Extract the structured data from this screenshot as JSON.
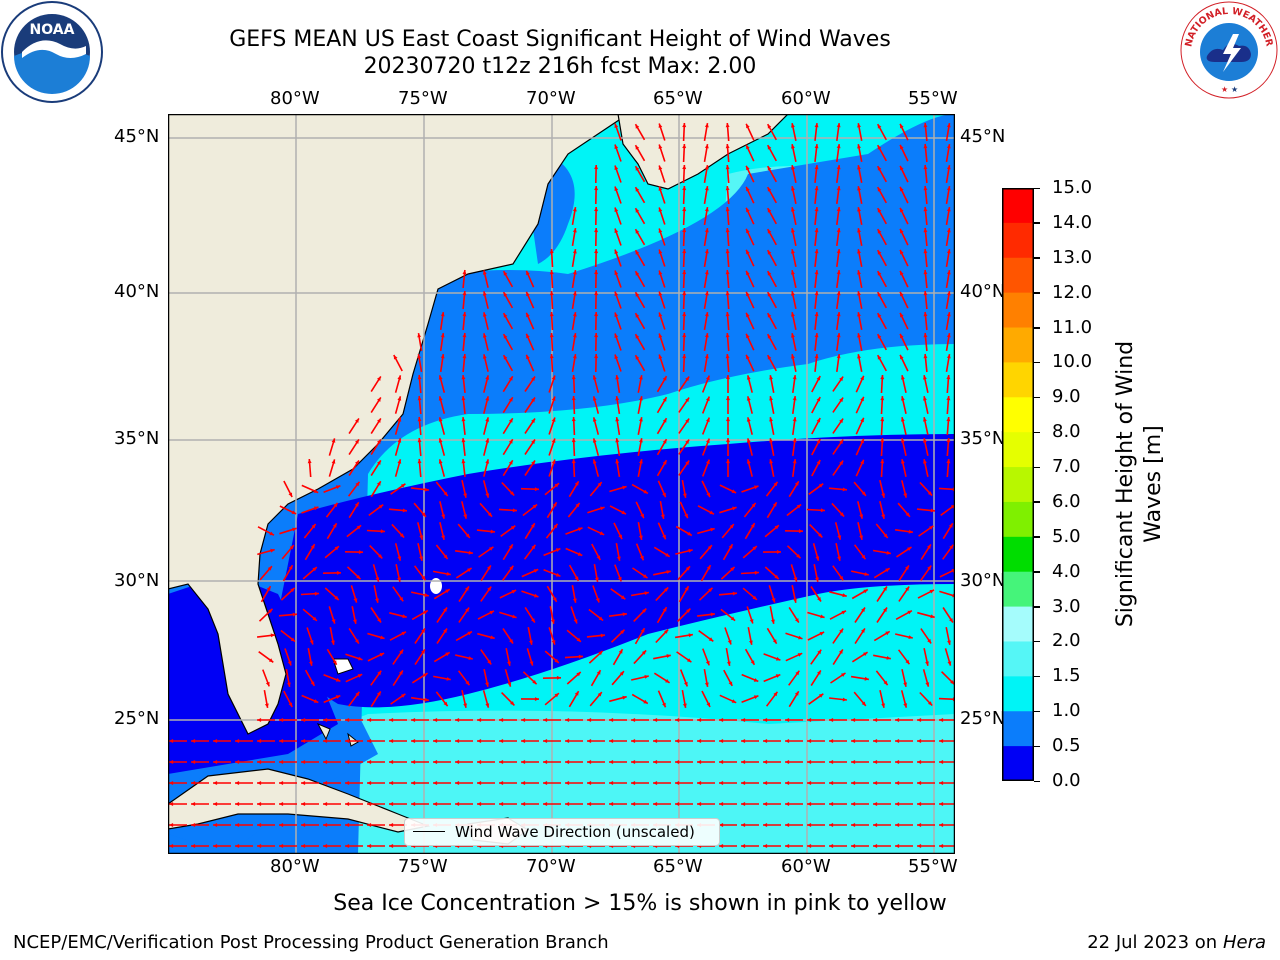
{
  "header": {
    "title": "GEFS MEAN US East Coast Significant Height of Wind Waves",
    "subtitle": "20230720 t12z 216h fcst   Max: 2.00"
  },
  "map": {
    "lon_ticks": [
      "80°W",
      "75°W",
      "70°W",
      "65°W",
      "60°W",
      "55°W"
    ],
    "lat_ticks": [
      "45°N",
      "40°N",
      "35°N",
      "30°N",
      "25°N"
    ],
    "legend_label": "Wind Wave Direction (unscaled)",
    "colors": {
      "land": "#efecdc",
      "bin_0_0_5": "#0000f5",
      "bin_0_5_1_0": "#0b7dfb",
      "bin_1_0_1_5": "#00f4f6",
      "bin_1_5_2_0": "#55f6f6",
      "arrow": "#ff0000",
      "grid": "#b0b0b0"
    }
  },
  "colorbar": {
    "label": "Significant Height of Wind Waves [m]",
    "label_line1": "Significant Height of Wind",
    "label_line2": "Waves [m]",
    "ticks": [
      "15.0",
      "14.0",
      "13.0",
      "12.0",
      "11.0",
      "10.0",
      "9.0",
      "8.0",
      "7.0",
      "6.0",
      "5.0",
      "4.0",
      "3.0",
      "2.0",
      "1.5",
      "1.0",
      "0.5",
      "0.0"
    ],
    "colors": [
      "#ff0000",
      "#ff2a00",
      "#ff5500",
      "#ff8000",
      "#ffaa00",
      "#ffd500",
      "#ffff00",
      "#e5ff00",
      "#b8f700",
      "#7ff000",
      "#00dd00",
      "#45f47a",
      "#a5fcfc",
      "#55f6f6",
      "#00f4f6",
      "#0b7dfb",
      "#0000f5"
    ]
  },
  "footer": {
    "sea_ice_note": "Sea Ice Concentration > 15% is shown in pink to yellow",
    "left": "NCEP/EMC/Verification Post Processing Product Generation Branch",
    "right_date": "22 Jul 2023 on ",
    "right_machine": "Hera"
  },
  "logos": {
    "left_text": "NOAA",
    "left_ring": "NATIONAL OCEANIC AND ATMOSPHERIC ADMINISTRATION · U.S. DEPARTMENT OF COMMERCE",
    "right_ring": "NATIONAL WEATHER SERVICE"
  }
}
